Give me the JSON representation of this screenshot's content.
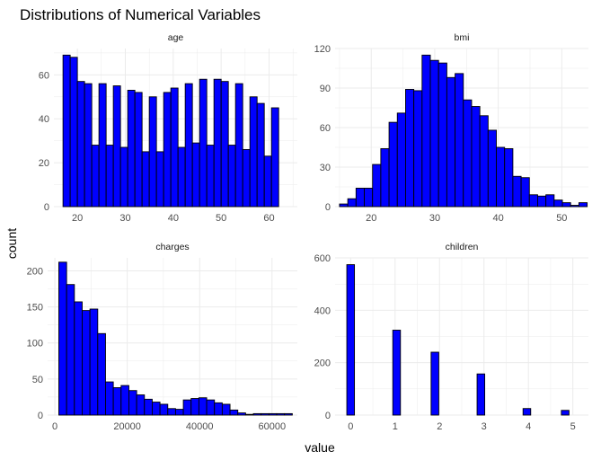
{
  "chart_data": {
    "type": "bar",
    "title": "Distributions of Numerical Variables",
    "xlabel": "value",
    "ylabel": "count",
    "bar_color": "#0000ff",
    "bar_outline": "#000000",
    "grid_color": "#ebebeb",
    "panels": [
      {
        "name": "age",
        "bin_start": 17,
        "bin_width": 1.5,
        "values": [
          69,
          68,
          57,
          56,
          28,
          56,
          28,
          55,
          27,
          53,
          52,
          25,
          50,
          25,
          52,
          54,
          27,
          56,
          29,
          58,
          28,
          58,
          57,
          28,
          56,
          26,
          50,
          47,
          23,
          45
        ],
        "xlim": [
          15.1,
          65.9
        ],
        "ylim": [
          0,
          72
        ],
        "xticks": [
          20,
          30,
          40,
          50,
          60
        ],
        "yticks": [
          0,
          20,
          40,
          60
        ]
      },
      {
        "name": "bmi",
        "bin_start": 15,
        "bin_width": 1.3,
        "values": [
          2,
          6,
          14,
          14,
          32,
          44,
          64,
          71,
          89,
          88,
          115,
          111,
          109,
          98,
          101,
          81,
          76,
          69,
          58,
          45,
          44,
          23,
          22,
          9,
          8,
          9,
          5,
          3,
          1,
          3
        ],
        "xlim": [
          14.3,
          54.2
        ],
        "ylim": [
          0,
          120
        ],
        "xticks": [
          20,
          30,
          40,
          50
        ],
        "yticks": [
          0,
          30,
          60,
          90,
          120
        ]
      },
      {
        "name": "charges",
        "bin_start": 1100,
        "bin_width": 2150,
        "values": [
          212,
          181,
          157,
          145,
          147,
          113,
          46,
          38,
          41,
          34,
          28,
          22,
          18,
          15,
          9,
          8,
          21,
          23,
          24,
          21,
          17,
          15,
          7,
          3,
          1,
          2,
          2,
          2,
          2,
          2
        ],
        "xlim": [
          -2000,
          67000
        ],
        "ylim": [
          0,
          218
        ],
        "xticks": [
          0,
          20000,
          40000,
          60000
        ],
        "yticks": [
          0,
          50,
          100,
          150,
          200
        ]
      },
      {
        "name": "children",
        "bin_start": -0.0862,
        "bin_width": 0.1724,
        "values": [
          574,
          0,
          0,
          0,
          0,
          0,
          324,
          0,
          0,
          0,
          0,
          240,
          0,
          0,
          0,
          0,
          0,
          157,
          0,
          0,
          0,
          0,
          0,
          25,
          0,
          0,
          0,
          0,
          18
        ],
        "xlim": [
          -0.35,
          5.35
        ],
        "ylim": [
          0,
          600
        ],
        "xticks": [
          0,
          1,
          2,
          3,
          4,
          5
        ],
        "yticks": [
          0,
          200,
          400,
          600
        ]
      }
    ]
  }
}
